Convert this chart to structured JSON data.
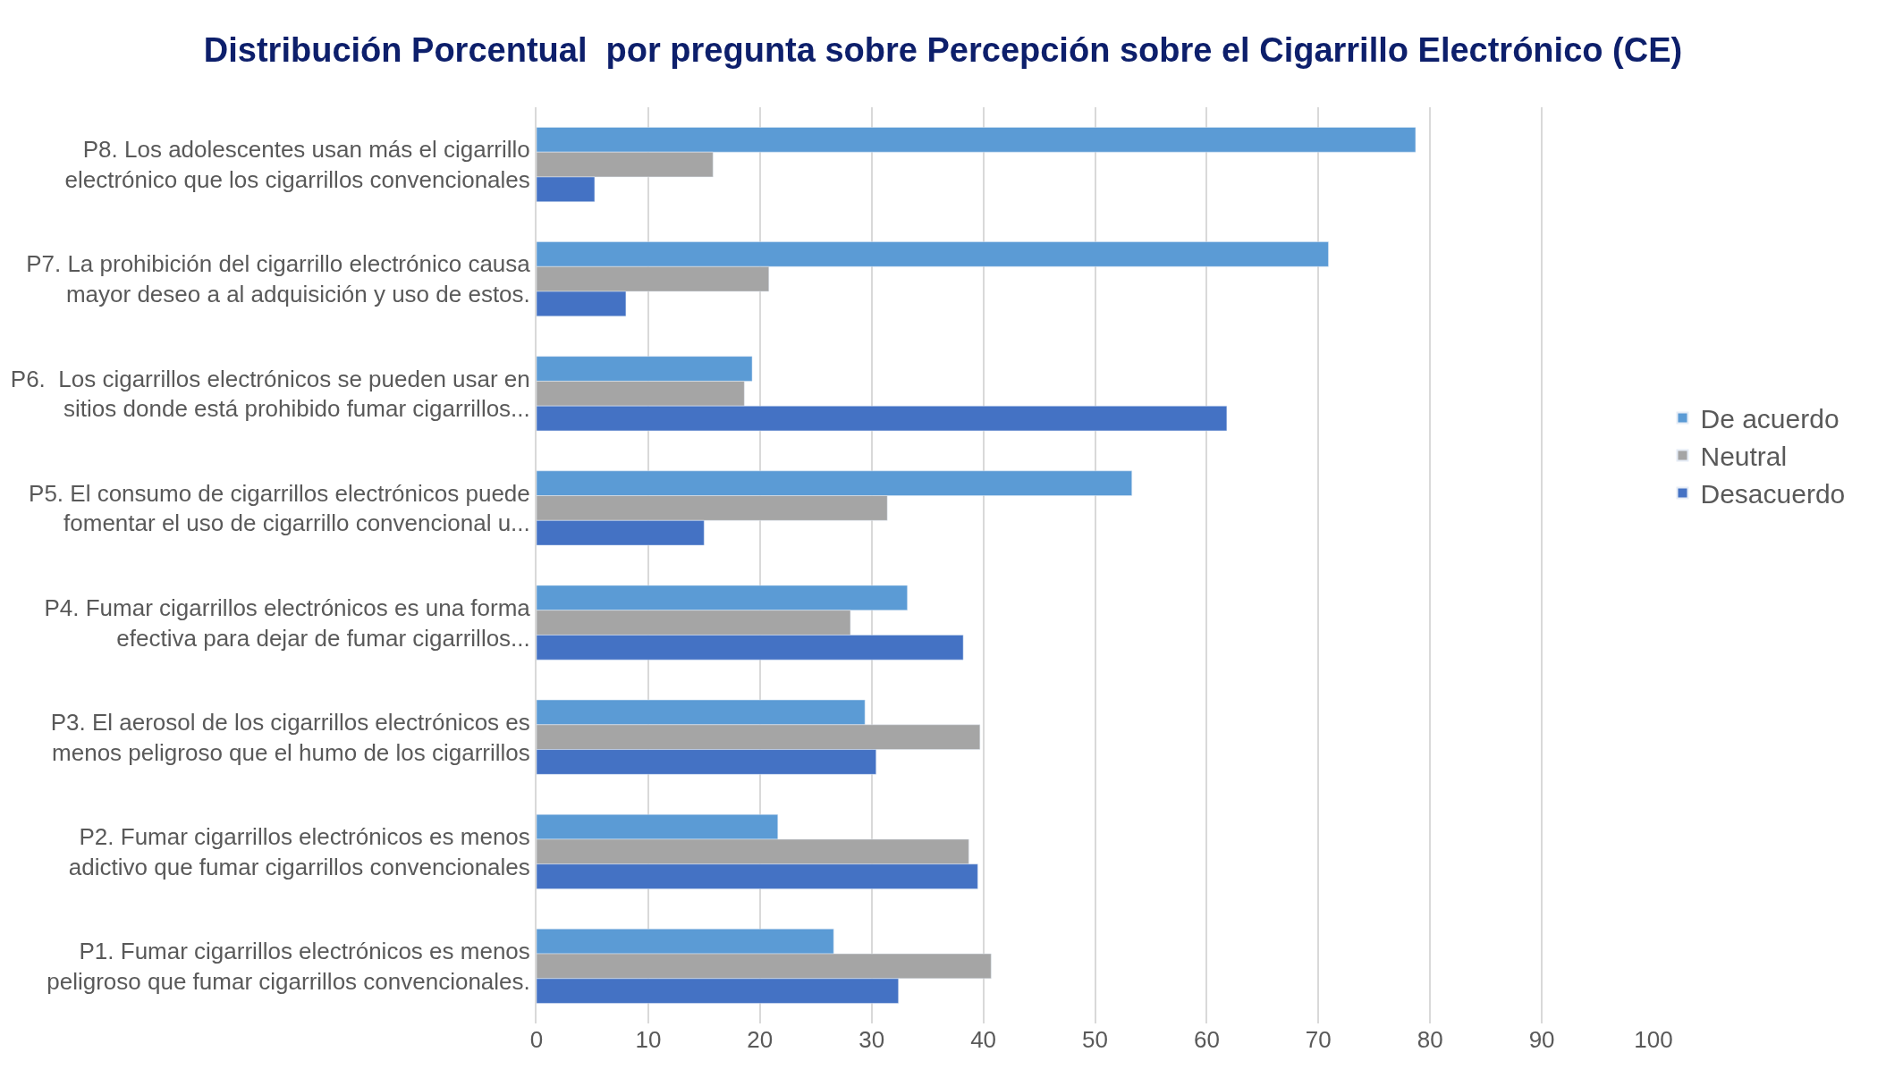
{
  "chart_data": {
    "type": "bar",
    "orientation": "horizontal",
    "title": "Distribución Porcentual  por pregunta sobre Percepción sobre el Cigarrillo Electrónico (CE)",
    "categories": [
      "P8. Los adolescentes usan más el cigarrillo\nelectrónico que los cigarrillos convencionales",
      "P7. La prohibición del cigarrillo electrónico causa\nmayor deseo a al adquisición y uso de estos.",
      "P6.  Los cigarrillos electrónicos se pueden usar en\nsitios donde está prohibido fumar cigarrillos...",
      "P5. El consumo de cigarrillos electrónicos puede\nfomentar el uso de cigarrillo convencional u...",
      "P4. Fumar cigarrillos electrónicos es una forma\nefectiva para dejar de fumar cigarrillos...",
      "P3. El aerosol de los cigarrillos electrónicos es\nmenos peligroso que el humo de los cigarrillos",
      "P2. Fumar cigarrillos electrónicos es menos\nadictivo que fumar cigarrillos convencionales",
      "P1. Fumar cigarrillos electrónicos es menos\npeligroso que fumar cigarrillos convencionales."
    ],
    "series": [
      {
        "name": "De acuerdo",
        "color": "#5b9bd5",
        "values": [
          78.7,
          70.9,
          19.3,
          53.3,
          33.2,
          29.4,
          21.6,
          26.6
        ]
      },
      {
        "name": "Neutral",
        "color": "#a5a5a5",
        "values": [
          15.8,
          20.8,
          18.6,
          31.4,
          28.1,
          39.7,
          38.7,
          40.7
        ]
      },
      {
        "name": "Desacuerdo",
        "color": "#4472c4",
        "values": [
          5.2,
          8.0,
          61.8,
          15.0,
          38.2,
          30.4,
          39.5,
          32.4
        ]
      }
    ],
    "xlim": [
      0,
      100
    ],
    "xticks": [
      0,
      10,
      20,
      30,
      40,
      50,
      60,
      70,
      80,
      90,
      100
    ],
    "grid": "x",
    "legend": "right"
  }
}
